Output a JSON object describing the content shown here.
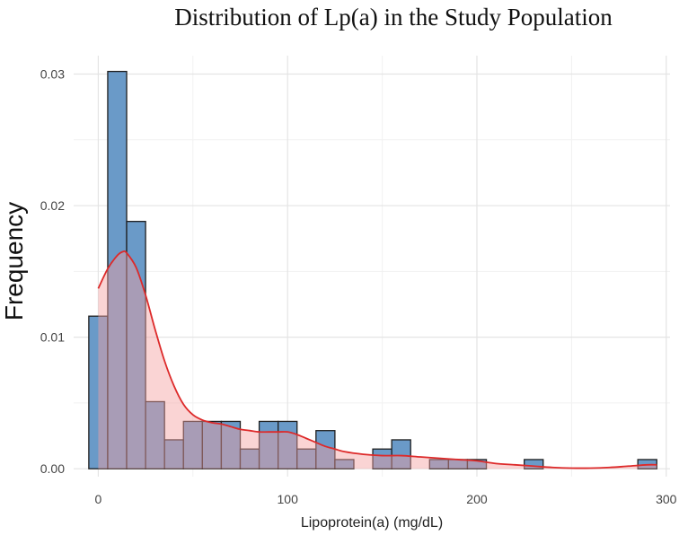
{
  "chart_data": {
    "type": "bar",
    "title": "Distribution of Lp(a) in the Study Population",
    "xlabel": "Lipoprotein(a) (mg/dL)",
    "ylabel": "Frequency",
    "xlim": [
      -13,
      302
    ],
    "ylim": [
      -0.0006,
      0.0314
    ],
    "x_ticks": [
      0,
      100,
      200,
      300
    ],
    "x_tick_labels": [
      "0",
      "100",
      "200",
      "300"
    ],
    "y_ticks": [
      0.0,
      0.01,
      0.02,
      0.03
    ],
    "y_tick_labels": [
      "0.00",
      "0.01",
      "0.02",
      "0.03"
    ],
    "grid": true,
    "bin_width": 10,
    "bin_edges": [
      -5,
      5,
      15,
      25,
      35,
      45,
      55,
      65,
      75,
      85,
      95,
      105,
      115,
      125,
      135,
      145,
      155,
      165,
      175,
      185,
      195,
      205,
      215,
      225,
      235,
      245,
      255,
      265,
      275,
      285,
      295
    ],
    "values": [
      0.0116,
      0.0302,
      0.0188,
      0.0051,
      0.0022,
      0.0036,
      0.0036,
      0.0036,
      0.0015,
      0.0036,
      0.0036,
      0.0015,
      0.0029,
      0.0007,
      0.0,
      0.0015,
      0.0022,
      0.0,
      0.0007,
      0.0007,
      0.0007,
      0.0,
      0.0,
      0.0007,
      0.0,
      0.0,
      0.0,
      0.0,
      0.0,
      0.0007
    ],
    "density_curve": {
      "x": [
        0,
        5,
        10,
        13,
        15,
        20,
        25,
        30,
        35,
        40,
        45,
        50,
        55,
        60,
        65,
        70,
        75,
        80,
        85,
        90,
        95,
        100,
        105,
        110,
        115,
        120,
        125,
        130,
        140,
        150,
        160,
        170,
        180,
        190,
        200,
        210,
        220,
        230,
        240,
        250,
        260,
        270,
        280,
        290,
        295
      ],
      "y": [
        0.0137,
        0.0152,
        0.0162,
        0.0165,
        0.0164,
        0.0153,
        0.0132,
        0.0106,
        0.0082,
        0.0063,
        0.0049,
        0.0041,
        0.0037,
        0.0035,
        0.0034,
        0.0032,
        0.003,
        0.0029,
        0.0028,
        0.0028,
        0.0028,
        0.0028,
        0.0026,
        0.0023,
        0.002,
        0.0017,
        0.0015,
        0.0013,
        0.0011,
        0.001,
        0.001,
        0.0009,
        0.0008,
        0.0007,
        0.0006,
        0.0004,
        0.0003,
        0.0002,
        0.0001,
        5e-05,
        5e-05,
        0.0001,
        0.0002,
        0.0003,
        0.0003
      ]
    },
    "colors": {
      "bar_fill": "#6a9ac8",
      "bar_stroke": "#1f1f1f",
      "density_line": "#dd2a2a",
      "density_fill": "#f4a0a0",
      "density_fill_opacity": 0.45,
      "grid_major": "#e4e4e4",
      "grid_minor": "#f1f1f1"
    }
  }
}
